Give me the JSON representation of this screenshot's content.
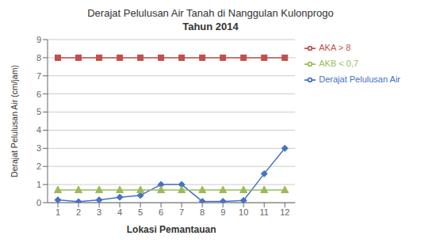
{
  "chart_data": {
    "type": "line",
    "title": "Derajat Pelulusan Air Tanah di Nanggulan Kulonprogo",
    "subtitle": "Tahun 2014",
    "xlabel": "Lokasi Pemantauan",
    "ylabel": "Derajat Pelulusan Air (cm/jam)",
    "x": [
      1,
      2,
      3,
      4,
      5,
      6,
      7,
      8,
      9,
      10,
      11,
      12
    ],
    "xlim": [
      0.5,
      12.5
    ],
    "xticks": [
      1,
      2,
      3,
      4,
      5,
      6,
      7,
      8,
      9,
      10,
      11,
      12
    ],
    "ylim": [
      0,
      9
    ],
    "yticks": [
      0,
      1,
      2,
      3,
      4,
      5,
      6,
      7,
      8,
      9
    ],
    "grid": "y",
    "legend": "right",
    "series": [
      {
        "name": "Derajat Pelulusan Air",
        "color": "#4472C4",
        "marker": "diamond",
        "values": [
          0.15,
          0.05,
          0.15,
          0.3,
          0.4,
          1.0,
          1.0,
          0.07,
          0.07,
          0.12,
          1.6,
          3.0
        ]
      },
      {
        "name": "AKA > 8",
        "color": "#C0504D",
        "marker": "square",
        "values": [
          8,
          8,
          8,
          8,
          8,
          8,
          8,
          8,
          8,
          8,
          8,
          8
        ]
      },
      {
        "name": "AKB < 0,7",
        "color": "#9BBB59",
        "marker": "triangle",
        "values": [
          0.7,
          0.7,
          0.7,
          0.7,
          0.7,
          0.7,
          0.7,
          0.7,
          0.7,
          0.7,
          0.7,
          0.7
        ]
      }
    ]
  }
}
